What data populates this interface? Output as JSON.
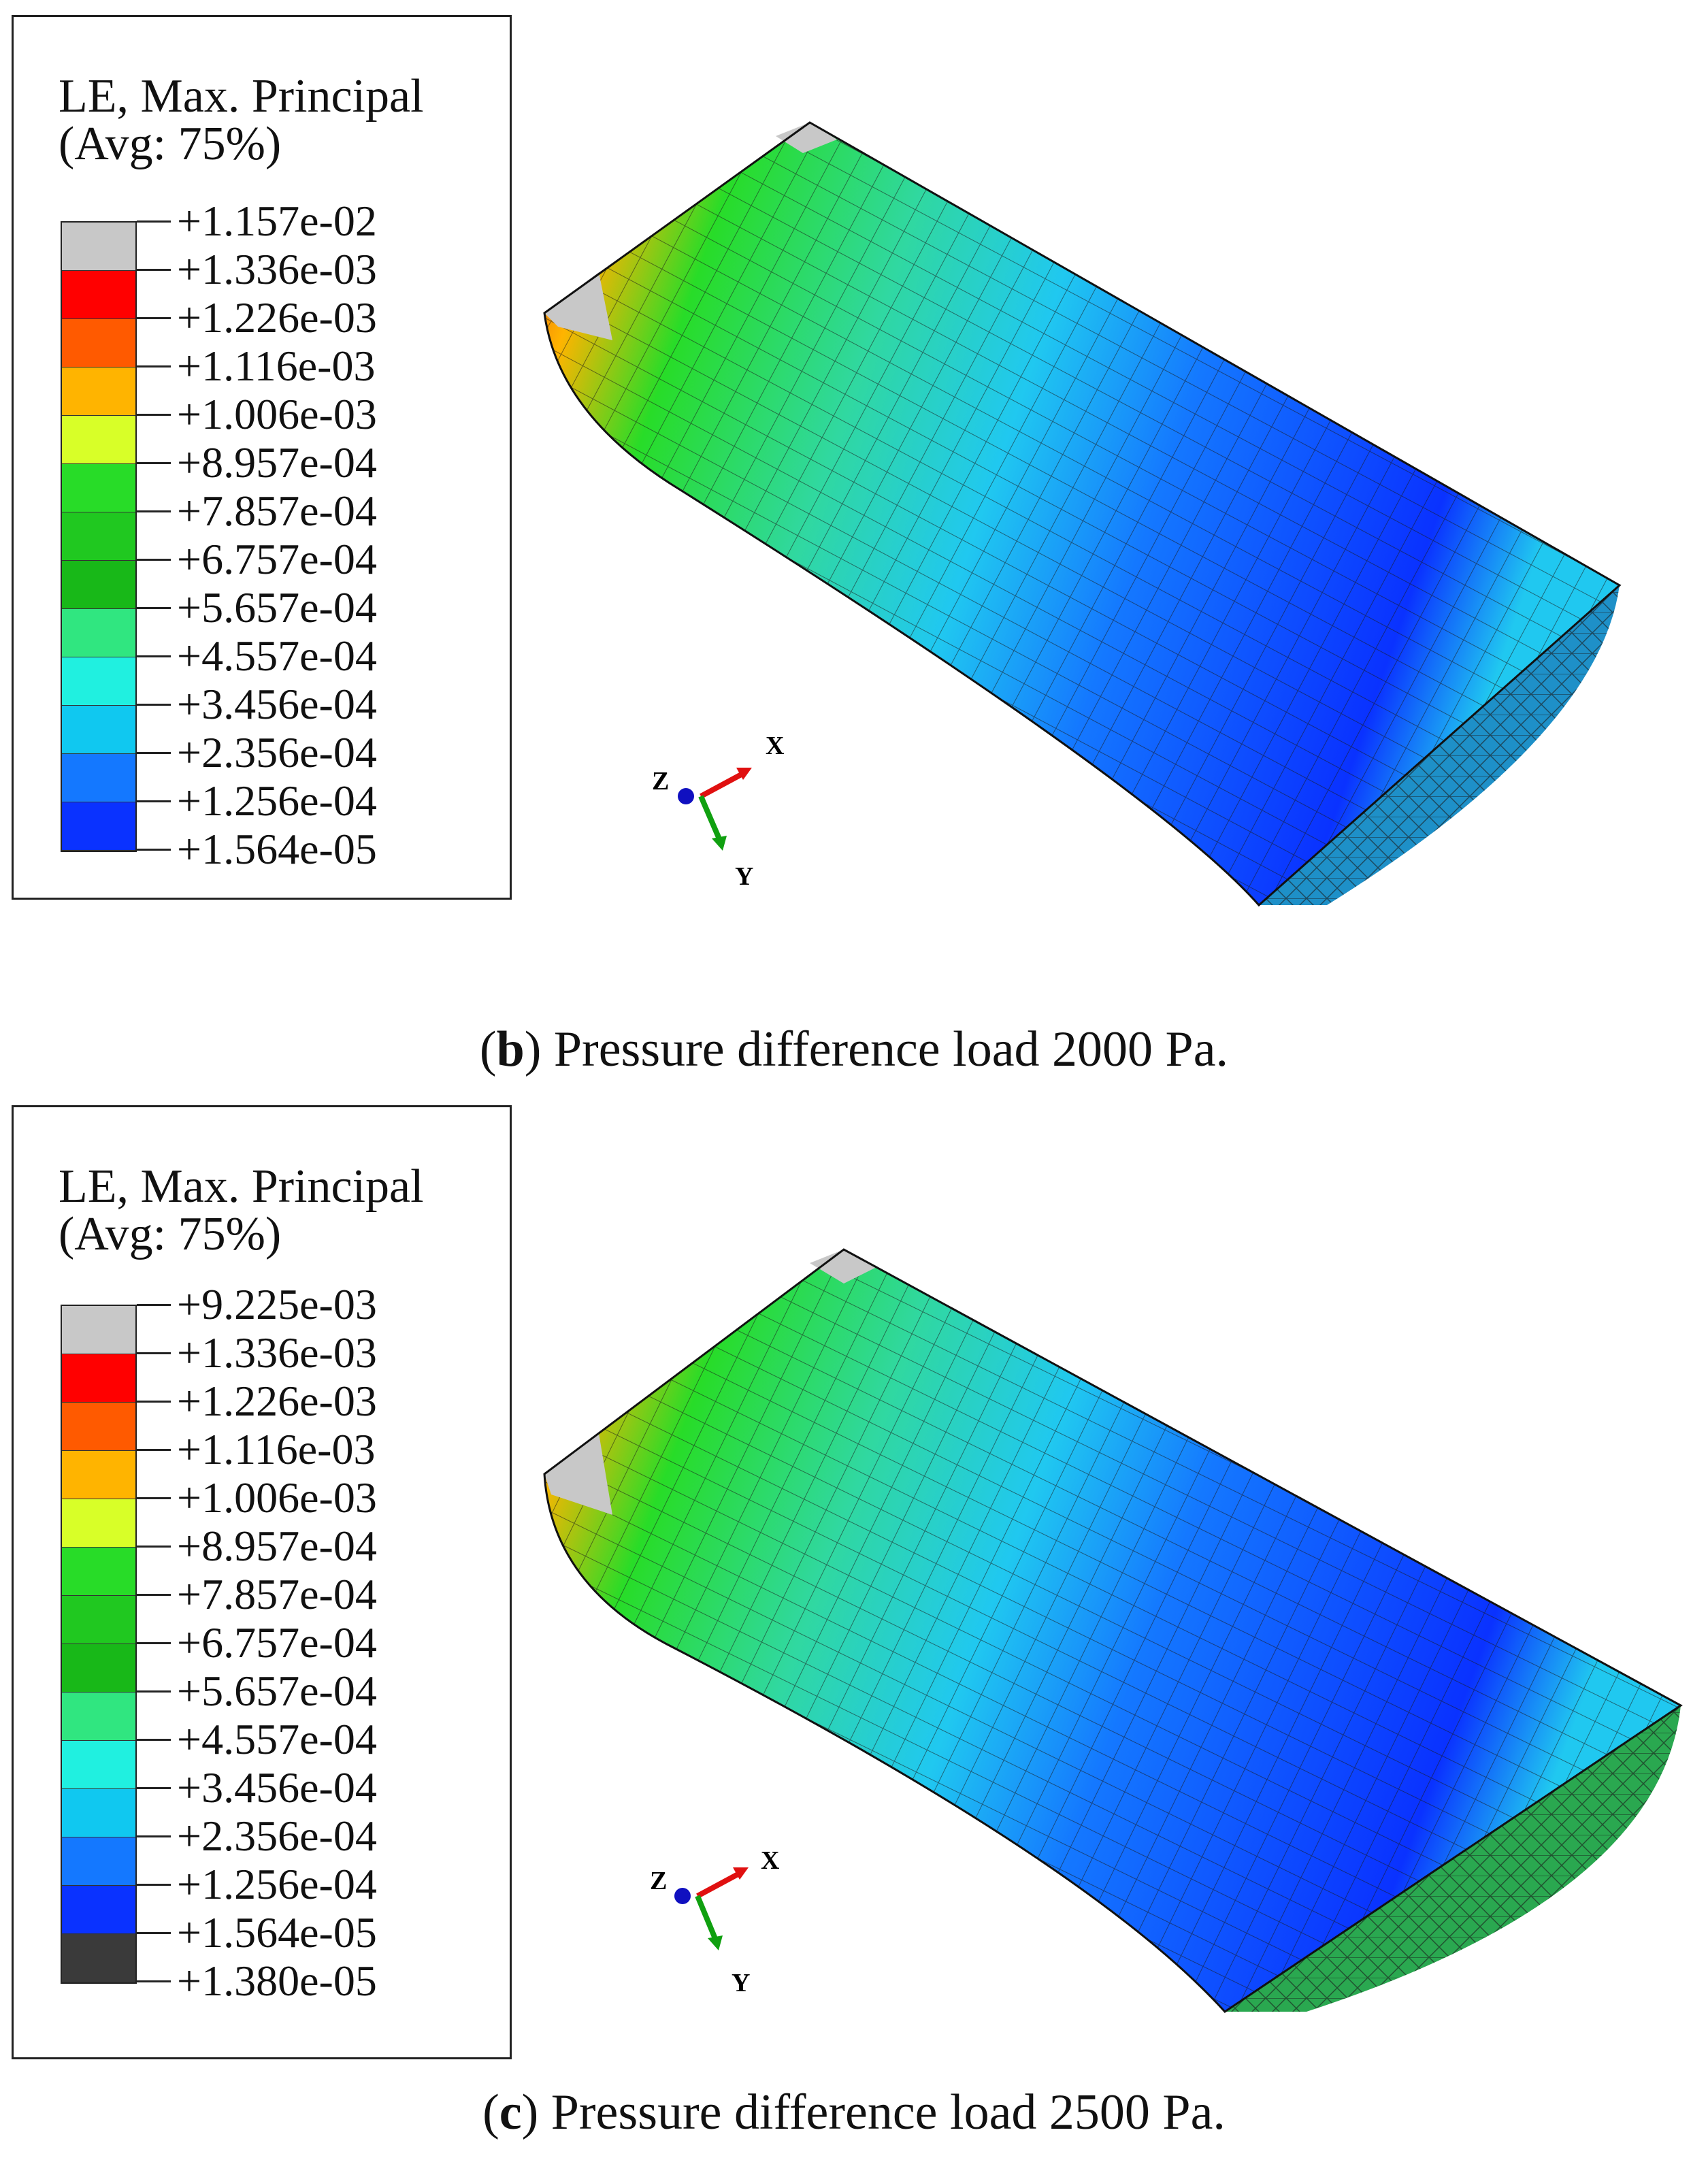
{
  "panels": [
    {
      "id": "b",
      "legend": {
        "title_line1": "LE, Max. Principal",
        "title_line2": "(Avg: 75%)",
        "values": [
          "+1.157e-02",
          "+1.336e-03",
          "+1.226e-03",
          "+1.116e-03",
          "+1.006e-03",
          "+8.957e-04",
          "+7.857e-04",
          "+6.757e-04",
          "+5.657e-04",
          "+4.557e-04",
          "+3.456e-04",
          "+2.356e-04",
          "+1.256e-04",
          "+1.564e-05"
        ],
        "colors": [
          "#c8c8c8",
          "#ff0000",
          "#ff5a00",
          "#ffb400",
          "#d8ff28",
          "#28dc28",
          "#20c820",
          "#18b818",
          "#30e680",
          "#20f0e0",
          "#10c8f0",
          "#1478ff",
          "#0a32ff"
        ]
      },
      "caption": {
        "letter": "b",
        "text": " Pressure difference load 2000 Pa."
      },
      "axes": {
        "x": "X",
        "y": "Y",
        "z": "Z"
      }
    },
    {
      "id": "c",
      "legend": {
        "title_line1": "LE, Max. Principal",
        "title_line2": "(Avg: 75%)",
        "values": [
          "+9.225e-03",
          "+1.336e-03",
          "+1.226e-03",
          "+1.116e-03",
          "+1.006e-03",
          "+8.957e-04",
          "+7.857e-04",
          "+6.757e-04",
          "+5.657e-04",
          "+4.557e-04",
          "+3.456e-04",
          "+2.356e-04",
          "+1.256e-04",
          "+1.564e-05",
          "+1.380e-05"
        ],
        "colors": [
          "#c8c8c8",
          "#ff0000",
          "#ff5a00",
          "#ffb400",
          "#d8ff28",
          "#28dc28",
          "#20c820",
          "#18b818",
          "#30e680",
          "#20f0e0",
          "#10c8f0",
          "#1478ff",
          "#0a32ff",
          "#3a3a3a"
        ]
      },
      "caption": {
        "letter": "c",
        "text": " Pressure difference load 2500 Pa."
      },
      "axes": {
        "x": "X",
        "y": "Y",
        "z": "Z"
      }
    }
  ]
}
